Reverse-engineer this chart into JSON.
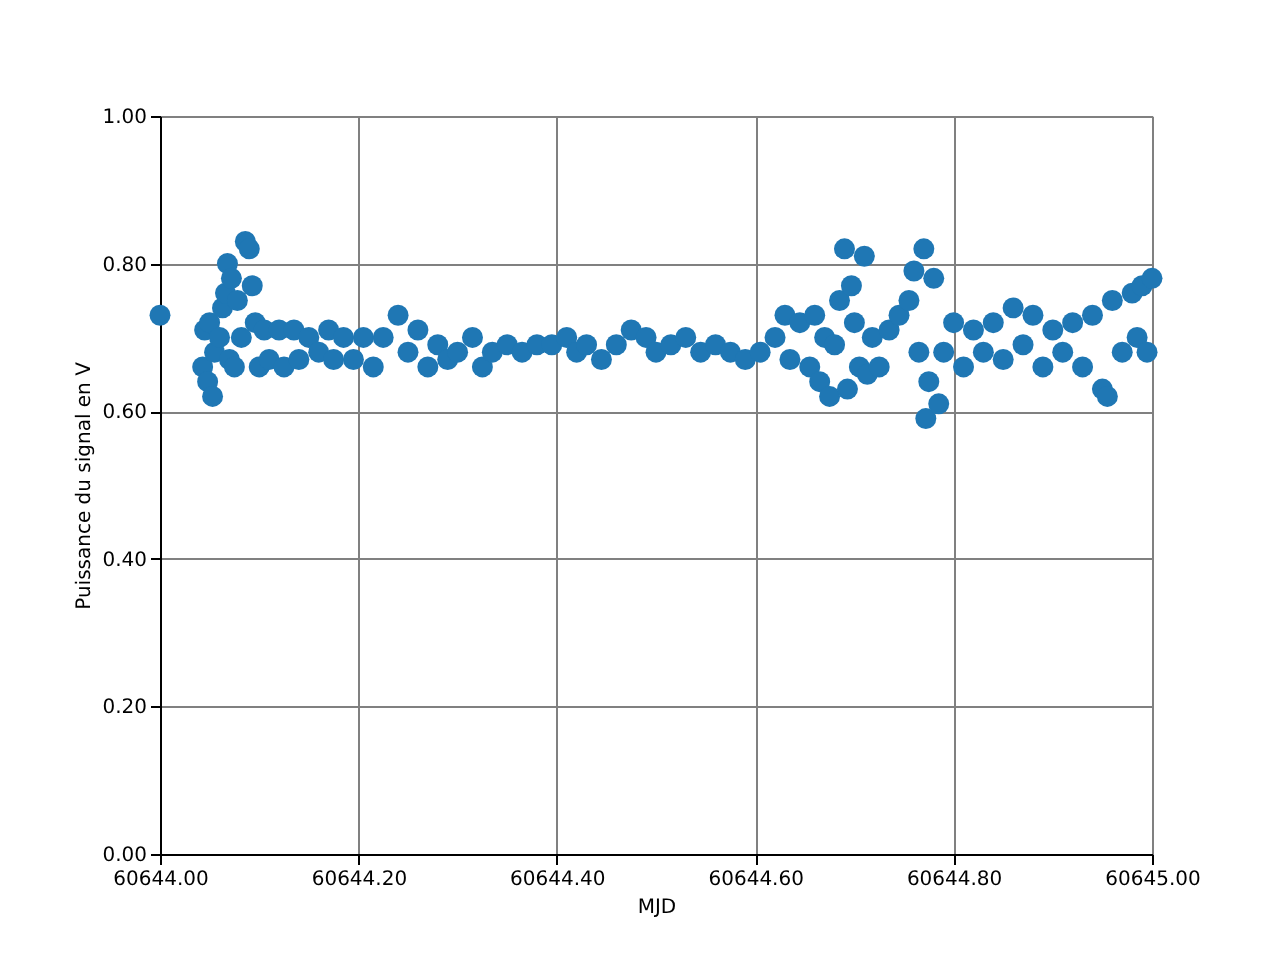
{
  "chart_data": {
    "type": "scatter",
    "xlabel": "MJD",
    "ylabel": "Puissance du signal en V",
    "x": [
      60644.0,
      60644.043,
      60644.045,
      60644.048,
      60644.05,
      60644.053,
      60644.055,
      60644.06,
      60644.063,
      60644.066,
      60644.068,
      60644.07,
      60644.072,
      60644.075,
      60644.078,
      60644.082,
      60644.086,
      60644.09,
      60644.093,
      60644.096,
      60644.1,
      60644.105,
      60644.11,
      60644.12,
      60644.125,
      60644.135,
      60644.14,
      60644.15,
      60644.16,
      60644.17,
      60644.175,
      60644.185,
      60644.195,
      60644.205,
      60644.215,
      60644.225,
      60644.24,
      60644.25,
      60644.26,
      60644.27,
      60644.28,
      60644.29,
      60644.3,
      60644.315,
      60644.325,
      60644.335,
      60644.35,
      60644.365,
      60644.38,
      60644.395,
      60644.41,
      60644.42,
      60644.43,
      60644.445,
      60644.46,
      60644.475,
      60644.49,
      60644.5,
      60644.515,
      60644.53,
      60644.545,
      60644.56,
      60644.575,
      60644.59,
      60644.605,
      60644.62,
      60644.63,
      60644.635,
      60644.645,
      60644.655,
      60644.66,
      60644.665,
      60644.67,
      60644.675,
      60644.68,
      60644.685,
      60644.69,
      60644.693,
      60644.697,
      60644.7,
      60644.705,
      60644.71,
      60644.713,
      60644.718,
      60644.725,
      60644.735,
      60644.745,
      60644.755,
      60644.76,
      60644.765,
      60644.77,
      60644.772,
      60644.775,
      60644.78,
      60644.785,
      60644.79,
      60644.8,
      60644.81,
      60644.82,
      60644.83,
      60644.84,
      60644.85,
      60644.86,
      60644.87,
      60644.88,
      60644.89,
      60644.9,
      60644.91,
      60644.92,
      60644.93,
      60644.94,
      60644.95,
      60644.955,
      60644.96,
      60644.97,
      60644.98,
      60644.985,
      60644.99,
      60644.995,
      60645.0
    ],
    "series": [
      {
        "color": "#1f77b4",
        "values": [
          0.73,
          0.66,
          0.71,
          0.64,
          0.72,
          0.62,
          0.68,
          0.7,
          0.74,
          0.76,
          0.8,
          0.67,
          0.78,
          0.66,
          0.75,
          0.7,
          0.83,
          0.82,
          0.77,
          0.72,
          0.66,
          0.71,
          0.67,
          0.71,
          0.66,
          0.71,
          0.67,
          0.7,
          0.68,
          0.71,
          0.67,
          0.7,
          0.67,
          0.7,
          0.66,
          0.7,
          0.73,
          0.68,
          0.71,
          0.66,
          0.69,
          0.67,
          0.68,
          0.7,
          0.66,
          0.68,
          0.69,
          0.68,
          0.69,
          0.69,
          0.7,
          0.68,
          0.69,
          0.67,
          0.69,
          0.71,
          0.7,
          0.68,
          0.69,
          0.7,
          0.68,
          0.69,
          0.68,
          0.67,
          0.68,
          0.7,
          0.73,
          0.67,
          0.72,
          0.66,
          0.73,
          0.64,
          0.7,
          0.62,
          0.69,
          0.75,
          0.82,
          0.63,
          0.77,
          0.72,
          0.66,
          0.81,
          0.65,
          0.7,
          0.66,
          0.71,
          0.73,
          0.75,
          0.79,
          0.68,
          0.82,
          0.59,
          0.64,
          0.78,
          0.61,
          0.68,
          0.72,
          0.66,
          0.71,
          0.68,
          0.72,
          0.67,
          0.74,
          0.69,
          0.73,
          0.66,
          0.71,
          0.68,
          0.72,
          0.66,
          0.73,
          0.63,
          0.62,
          0.75,
          0.68,
          0.76,
          0.7,
          0.77,
          0.68,
          0.78
        ]
      }
    ],
    "xlim": [
      60644.0,
      60645.0
    ],
    "xticks": [
      {
        "value": 60644.0,
        "label": "60644.00"
      },
      {
        "value": 60644.2,
        "label": "60644.20"
      },
      {
        "value": 60644.4,
        "label": "60644.40"
      },
      {
        "value": 60644.6,
        "label": "60644.60"
      },
      {
        "value": 60644.8,
        "label": "60644.80"
      },
      {
        "value": 60645.0,
        "label": "60645.00"
      }
    ],
    "ylim": [
      0,
      1
    ],
    "yticks": [
      {
        "value": 0,
        "label": "0.00"
      },
      {
        "value": 0.2,
        "label": "0.20"
      },
      {
        "value": 0.4,
        "label": "0.40"
      },
      {
        "value": 0.6,
        "label": "0.60"
      },
      {
        "value": 0.8,
        "label": "0.80"
      },
      {
        "value": 1,
        "label": "1.00"
      }
    ],
    "grid": true,
    "marker": "circle"
  }
}
